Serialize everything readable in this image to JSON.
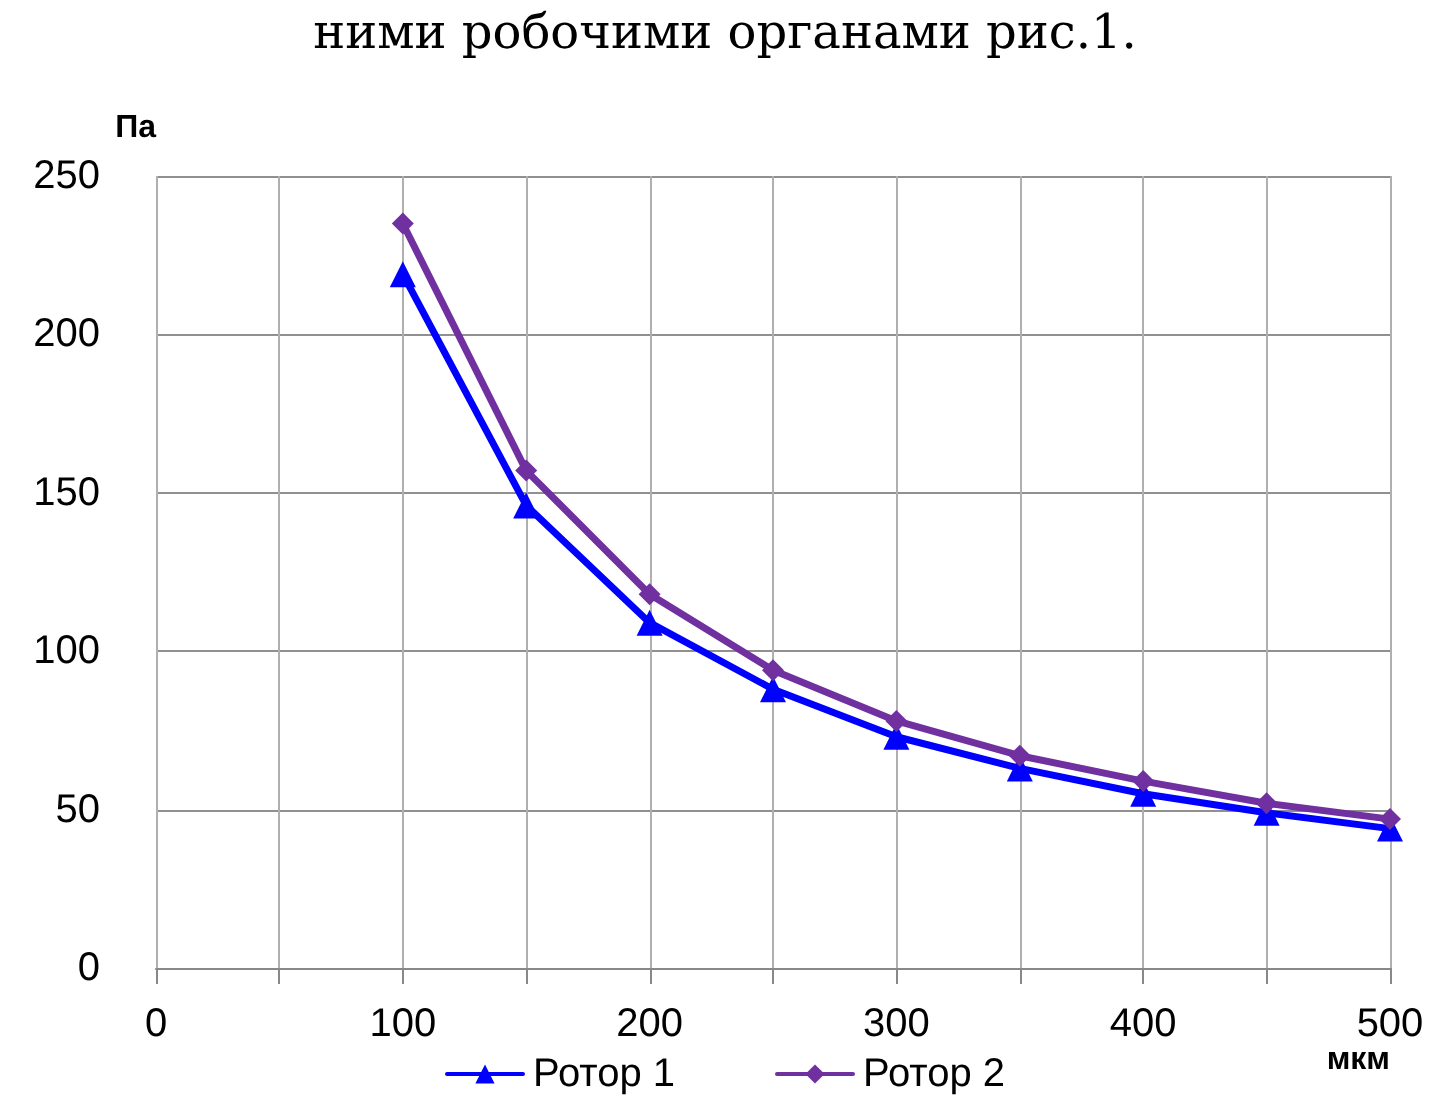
{
  "chart_data": {
    "type": "line",
    "xlabel": "мкм",
    "ylabel": "Па",
    "annotations": [
      "ними робочими органами рис.1."
    ],
    "x": [
      100,
      150,
      200,
      250,
      300,
      350,
      400,
      450,
      500
    ],
    "series": [
      {
        "name": "Ротор 1",
        "color": "#0000ff",
        "marker": "triangle",
        "values": [
          219,
          146,
          109,
          88,
          73,
          63,
          55,
          49,
          44
        ]
      },
      {
        "name": "Ротор 2",
        "color": "#7030a0",
        "marker": "diamond",
        "values": [
          235,
          157,
          118,
          94,
          78,
          67,
          59,
          52,
          47
        ]
      }
    ],
    "xlim": [
      0,
      500
    ],
    "xticks": [
      0,
      {
        "value": 50,
        "label": null
      },
      100,
      {
        "value": 150,
        "label": null
      },
      200,
      {
        "value": 250,
        "label": null
      },
      300,
      {
        "value": 350,
        "label": null
      },
      400,
      {
        "value": 450,
        "label": null
      },
      500
    ],
    "ylim": [
      0,
      250
    ],
    "yticks": [
      0,
      50,
      100,
      150,
      200,
      250
    ],
    "grid": true,
    "legend": "bottom",
    "line_style": "solid"
  }
}
